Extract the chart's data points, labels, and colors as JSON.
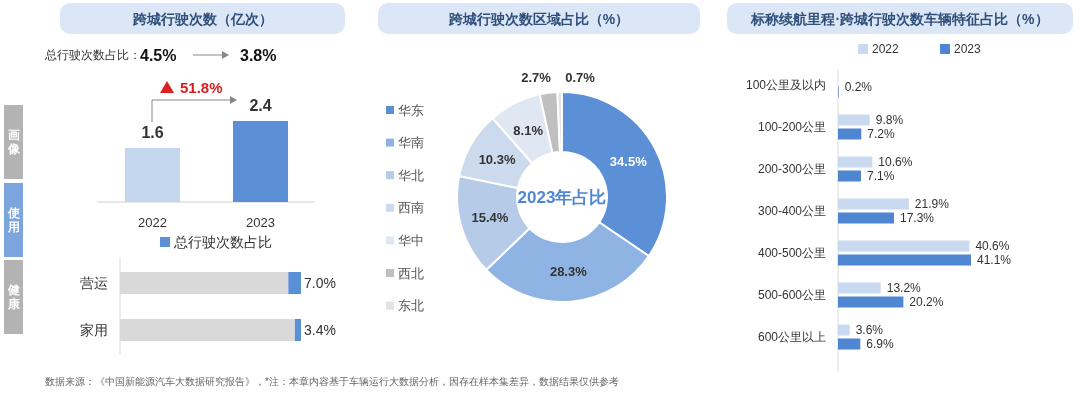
{
  "chart_data": [
    {
      "type": "bar",
      "title": "跨城行驶次数（亿次）",
      "categories": [
        "2022",
        "2023"
      ],
      "values": [
        1.6,
        2.4
      ],
      "colors": [
        "#c5d7ee",
        "#5b8fd6"
      ],
      "data_labels": true,
      "annotations": [
        "总行驶次数占比：",
        "4.5%",
        "3.8%",
        "51.8%"
      ]
    },
    {
      "type": "bar",
      "orientation": "horizontal",
      "stacked": true,
      "categories": [
        "营运",
        "家用"
      ],
      "legend": "top",
      "series": [
        {
          "color": "#d9d9d9",
          "values": [
            93.0,
            96.6
          ]
        },
        {
          "name": "总行驶次数占比",
          "color": "#5b8fd6",
          "values": [
            7.0,
            3.4
          ],
          "value_labels": [
            "7.0%",
            "3.4%"
          ]
        }
      ]
    },
    {
      "type": "donut",
      "title": "跨城行驶次数区域占比（%）",
      "categories": [
        "华东",
        "华南",
        "华北",
        "西南",
        "华中",
        "西北",
        "东北"
      ],
      "values": [
        34.5,
        28.3,
        15.4,
        10.3,
        8.1,
        2.7,
        0.7
      ],
      "colors": [
        "#5b8fd6",
        "#8fb3e3",
        "#b6cbe8",
        "#ccdaee",
        "#dfe7f3",
        "#bfbfbf",
        "#e3e3e3"
      ],
      "value_labels": [
        "34.5%",
        "28.3%",
        "15.4%",
        "10.3%",
        "8.1%",
        "2.7%",
        "0.7%"
      ],
      "legend": "left",
      "annotations": [
        "2023年占比"
      ]
    },
    {
      "type": "bar",
      "orientation": "horizontal",
      "title": "标称续航里程·跨城行驶次数车辆特征占比（%）",
      "categories": [
        "100公里及以内",
        "100-200公里",
        "200-300公里",
        "300-400公里",
        "400-500公里",
        "500-600公里",
        "600公里以上"
      ],
      "legend": "top",
      "series": [
        {
          "name": "2022",
          "color": "#c9d9ef",
          "values": [
            null,
            9.8,
            10.6,
            21.9,
            40.6,
            13.2,
            3.6
          ],
          "value_labels": [
            null,
            "9.8%",
            "10.6%",
            "21.9%",
            "40.6%",
            "13.2%",
            "3.6%"
          ]
        },
        {
          "name": "2023",
          "color": "#4f86d2",
          "values": [
            0.2,
            7.2,
            7.1,
            17.3,
            41.1,
            20.2,
            6.9
          ],
          "value_labels": [
            "0.2%",
            "7.2%",
            "7.1%",
            "17.3%",
            "41.1%",
            "20.2%",
            "6.9%"
          ]
        }
      ]
    },
    {
      "type": "other",
      "annotations": [
        "画像",
        "使用",
        "健康",
        "数据来源：《中国新能源汽车大数据研究报告》，*注：本章内容基于车辆运行大数据分析，因存在样本集差异，数据结果仅供参考"
      ]
    }
  ]
}
